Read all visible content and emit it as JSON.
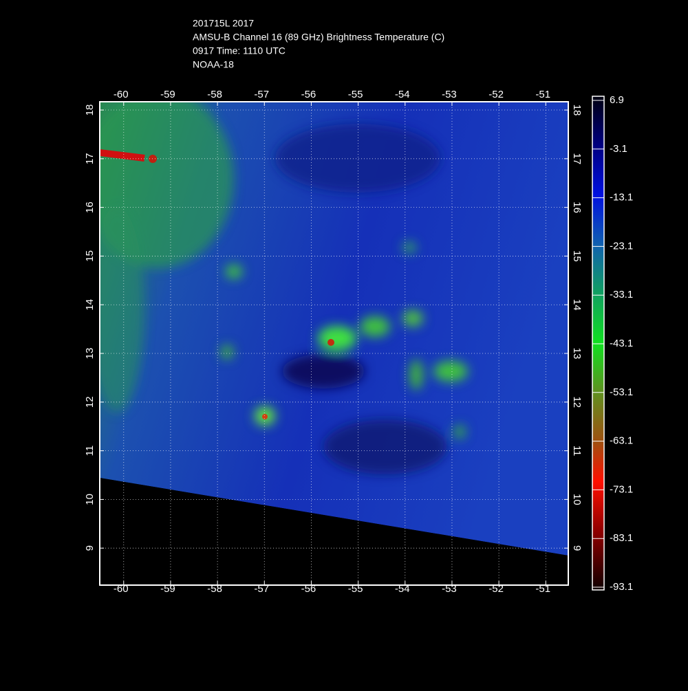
{
  "chart_data": {
    "type": "map",
    "title_lines": [
      "201715L 2017",
      "AMSU-B Channel 16 (89 GHz) Brightness Temperature (C)",
      "0917 Time: 1110 UTC",
      "NOAA-18"
    ],
    "xlim": [
      -60.51,
      -50.52
    ],
    "xticks": [
      -60,
      -59,
      -58,
      -57,
      -56,
      -55,
      -54,
      -53,
      -52,
      -51
    ],
    "ylim": [
      8.24,
      18.17
    ],
    "yticks": [
      9,
      10,
      11,
      12,
      13,
      14,
      15,
      16,
      17,
      18
    ],
    "grid": true,
    "colorbar": {
      "lim": [
        -93.1,
        6.9
      ],
      "ticks": [
        6.9,
        -3.1,
        -13.1,
        -23.1,
        -33.1,
        -43.1,
        -53.1,
        -63.1,
        -73.1,
        -83.1,
        -93.1
      ]
    }
  }
}
